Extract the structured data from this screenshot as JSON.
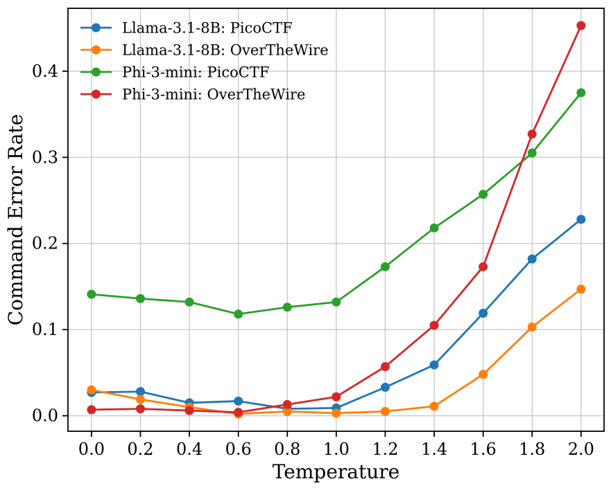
{
  "figure": {
    "background": "#ffffff",
    "spine_color": "#000000",
    "grid_color": "#c6c6c6"
  },
  "chart_data": {
    "type": "line",
    "title": "",
    "xlabel": "Temperature",
    "ylabel": "Command Error Rate",
    "x": [
      0.0,
      0.2,
      0.4,
      0.6,
      0.8,
      1.0,
      1.2,
      1.4,
      1.6,
      1.8,
      2.0
    ],
    "x_tick_labels": [
      "0.0",
      "0.2",
      "0.4",
      "0.6",
      "0.8",
      "1.0",
      "1.2",
      "1.4",
      "1.6",
      "1.8",
      "2.0"
    ],
    "y_ticks": [
      0.0,
      0.1,
      0.2,
      0.3,
      0.4
    ],
    "y_tick_labels": [
      "0.0",
      "0.1",
      "0.2",
      "0.3",
      "0.4"
    ],
    "xlim": [
      -0.096,
      2.094
    ],
    "ylim": [
      -0.018,
      0.473
    ],
    "grid": true,
    "legend_position": "upper-left",
    "legend_frame": false,
    "series": [
      {
        "name": "Llama-3.1-8B: PicoCTF",
        "color": "#1f77b4",
        "marker": "circle",
        "values": [
          0.027,
          0.028,
          0.015,
          0.017,
          0.008,
          0.009,
          0.033,
          0.059,
          0.119,
          0.182,
          0.228
        ]
      },
      {
        "name": "Llama-3.1-8B: OverTheWire",
        "color": "#ff7f0e",
        "marker": "circle",
        "values": [
          0.03,
          0.019,
          0.01,
          0.002,
          0.005,
          0.003,
          0.005,
          0.011,
          0.048,
          0.103,
          0.147
        ]
      },
      {
        "name": "Phi-3-mini: PicoCTF",
        "color": "#2ca02c",
        "marker": "circle",
        "values": [
          0.141,
          0.136,
          0.132,
          0.118,
          0.126,
          0.132,
          0.173,
          0.218,
          0.257,
          0.305,
          0.375
        ]
      },
      {
        "name": "Phi-3-mini: OverTheWire",
        "color": "#d62728",
        "marker": "circle",
        "values": [
          0.007,
          0.008,
          0.006,
          0.004,
          0.013,
          0.022,
          0.057,
          0.105,
          0.173,
          0.327,
          0.453
        ]
      }
    ]
  }
}
